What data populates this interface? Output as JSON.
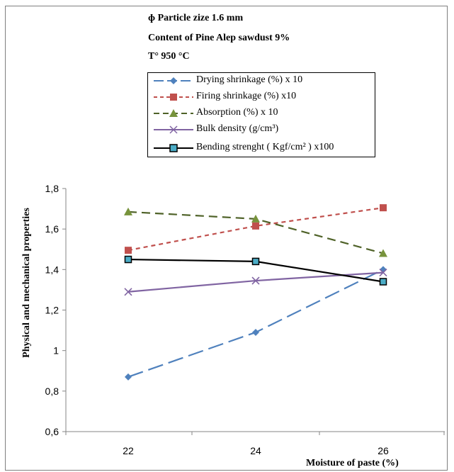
{
  "annotations": {
    "line1": "ɸ  Particle zize 1.6 mm",
    "line2": "Content of  Pine Alep sawdust 9%",
    "line3": "T° 950 °C"
  },
  "legend": [
    {
      "label": "Drying shrinkage (%) x 10",
      "color": "#4f81bd",
      "dash": "long",
      "marker": "diamond"
    },
    {
      "label": "Firing shrinkage (%) x10",
      "color": "#c0504d",
      "dash": "short",
      "marker": "square"
    },
    {
      "label": "Absorption (%) x 10",
      "color": "#4f6228",
      "dash": "medium",
      "marker": "triangle"
    },
    {
      "label": "Bulk density (g/cm³)",
      "color": "#8064a2",
      "dash": "solid",
      "marker": "x"
    },
    {
      "label": "Bending strenght ( Kgf/cm² ) x100",
      "color": "#000000",
      "dash": "solid",
      "marker": "square-teal"
    }
  ],
  "chart_data": {
    "type": "line",
    "xlabel": "Moisture of paste (%)",
    "ylabel": "Physical and mechanical properties",
    "categories": [
      "22",
      "24",
      "26"
    ],
    "ylim": [
      0.6,
      1.8
    ],
    "yticks": [
      "0,6",
      "0,8",
      "1",
      "1,2",
      "1,4",
      "1,6",
      "1,8"
    ],
    "ytick_values": [
      0.6,
      0.8,
      1.0,
      1.2,
      1.4,
      1.6,
      1.8
    ],
    "grid": false,
    "legend_position": "top",
    "series": [
      {
        "name": "Drying shrinkage (%) x 10",
        "values": [
          0.87,
          1.09,
          1.4
        ]
      },
      {
        "name": "Firing shrinkage (%) x10",
        "values": [
          1.495,
          1.615,
          1.705
        ]
      },
      {
        "name": "Absorption (%) x 10",
        "values": [
          1.685,
          1.65,
          1.48
        ]
      },
      {
        "name": "Bulk density (g/cm³)",
        "values": [
          1.29,
          1.345,
          1.385
        ]
      },
      {
        "name": "Bending strenght ( Kgf/cm² ) x100",
        "values": [
          1.45,
          1.44,
          1.34
        ]
      }
    ]
  }
}
